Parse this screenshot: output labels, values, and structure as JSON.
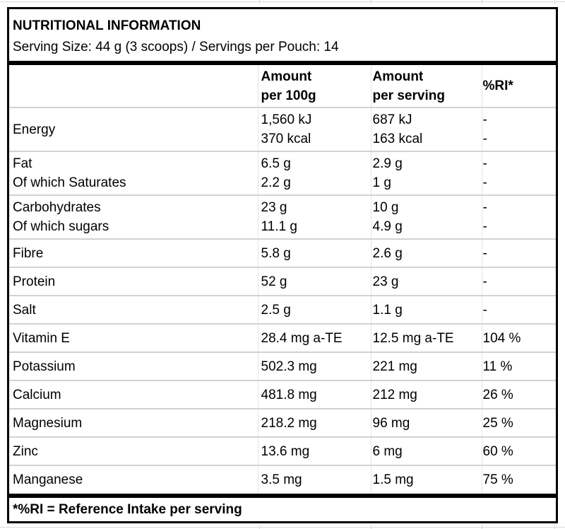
{
  "header": {
    "title": "NUTRITIONAL INFORMATION",
    "serving_line": "Serving Size: 44 g (3 scoops) / Servings per Pouch: 14"
  },
  "table": {
    "col_headers": [
      [
        ""
      ],
      [
        "Amount",
        "per 100g"
      ],
      [
        "Amount",
        "per serving"
      ],
      [
        "%RI*"
      ]
    ],
    "rows": [
      {
        "labels": [
          "Energy"
        ],
        "per_100g": [
          "1,560 kJ",
          "370 kcal"
        ],
        "per_serving": [
          "687 kJ",
          "163 kcal"
        ],
        "ri": [
          "-",
          "-"
        ]
      },
      {
        "labels": [
          "Fat",
          "Of which Saturates"
        ],
        "per_100g": [
          "6.5 g",
          "2.2 g"
        ],
        "per_serving": [
          "2.9 g",
          "1 g"
        ],
        "ri": [
          "-",
          "-"
        ]
      },
      {
        "labels": [
          "Carbohydrates",
          "Of which sugars"
        ],
        "per_100g": [
          "23 g",
          "11.1 g"
        ],
        "per_serving": [
          "10 g",
          "4.9 g"
        ],
        "ri": [
          "-",
          "-"
        ]
      },
      {
        "labels": [
          "Fibre"
        ],
        "per_100g": [
          "5.8 g"
        ],
        "per_serving": [
          "2.6 g"
        ],
        "ri": [
          "-"
        ]
      },
      {
        "labels": [
          "Protein"
        ],
        "per_100g": [
          "52 g"
        ],
        "per_serving": [
          "23 g"
        ],
        "ri": [
          "-"
        ]
      },
      {
        "labels": [
          "Salt"
        ],
        "per_100g": [
          "2.5 g"
        ],
        "per_serving": [
          "1.1 g"
        ],
        "ri": [
          "-"
        ]
      },
      {
        "labels": [
          "Vitamin E"
        ],
        "per_100g": [
          "28.4 mg a-TE"
        ],
        "per_serving": [
          "12.5 mg a-TE"
        ],
        "ri": [
          "104 %"
        ]
      },
      {
        "labels": [
          "Potassium"
        ],
        "per_100g": [
          "502.3 mg"
        ],
        "per_serving": [
          "221 mg"
        ],
        "ri": [
          "11 %"
        ]
      },
      {
        "labels": [
          "Calcium"
        ],
        "per_100g": [
          "481.8 mg"
        ],
        "per_serving": [
          "212 mg"
        ],
        "ri": [
          "26 %"
        ]
      },
      {
        "labels": [
          "Magnesium"
        ],
        "per_100g": [
          "218.2 mg"
        ],
        "per_serving": [
          "96 mg"
        ],
        "ri": [
          "25 %"
        ]
      },
      {
        "labels": [
          "Zinc"
        ],
        "per_100g": [
          "13.6 mg"
        ],
        "per_serving": [
          "6 mg"
        ],
        "ri": [
          "60 %"
        ]
      },
      {
        "labels": [
          "Manganese"
        ],
        "per_100g": [
          "3.5 mg"
        ],
        "per_serving": [
          "1.5 mg"
        ],
        "ri": [
          "75 %"
        ]
      }
    ]
  },
  "footer": {
    "note": "*%RI = Reference Intake per serving"
  },
  "colors": {
    "border": "#000000",
    "row_line": "#d2d2d2",
    "col_line": "#e4e4e4",
    "artifact_line": "#d9d9d9",
    "text": "#000000",
    "background": "#ffffff"
  },
  "artifact_tick_x": [
    367,
    525,
    682,
    785
  ]
}
